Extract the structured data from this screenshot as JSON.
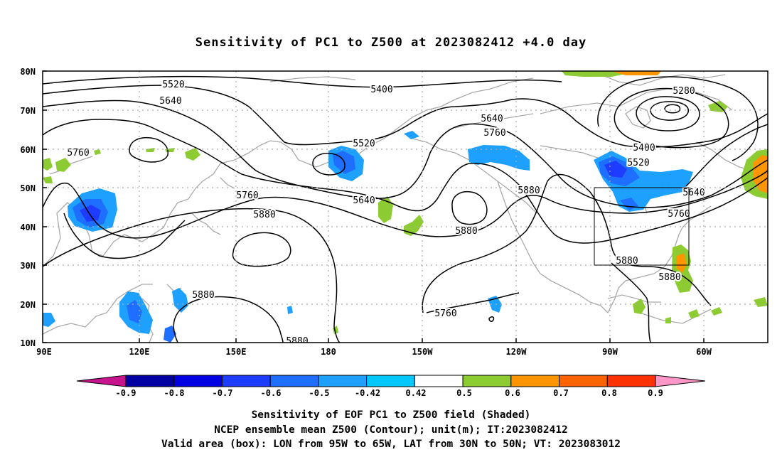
{
  "title": "Sensitivity of PC1 to Z500 at 2023082412 +4.0 day",
  "map": {
    "lat_labels": [
      "80N",
      "70N",
      "60N",
      "50N",
      "40N",
      "30N",
      "20N",
      "10N"
    ],
    "lon_labels": [
      "90E",
      "120E",
      "150E",
      "180",
      "150W",
      "120W",
      "90W",
      "60W"
    ],
    "contour_labels": [
      "5520",
      "5640",
      "5400",
      "5280",
      "5760",
      "5520",
      "5640",
      "5760",
      "5400",
      "5520",
      "5880",
      "5640",
      "5760",
      "5640",
      "5880",
      "5760",
      "5880",
      "5880",
      "5880",
      "5880",
      "5760"
    ],
    "valid_box": {
      "lon_range": [
        "95W",
        "65W"
      ],
      "lat_range": [
        "30N",
        "50N"
      ]
    }
  },
  "colorbar": {
    "labels": [
      "-0.9",
      "-0.8",
      "-0.7",
      "-0.6",
      "-0.5",
      "-0.42",
      "0.42",
      "0.5",
      "0.6",
      "0.7",
      "0.8",
      "0.9"
    ],
    "colors": [
      "#0000a0",
      "#0000e0",
      "#1e3cff",
      "#1e6eff",
      "#1ea0ff",
      "#00c8ff",
      "#ffffff",
      "#8ccc32",
      "#ff9600",
      "#ff6400",
      "#ff3200",
      "#ff0000"
    ],
    "below_color": "#c8148c",
    "above_color": "#ff96c8"
  },
  "captions": {
    "line1": "Sensitivity of EOF PC1 to Z500 field (Shaded)",
    "line2": "NCEP ensemble mean Z500 (Contour); unit(m); IT:2023082412",
    "line3": "Valid area (box): LON from 95W to 65W, LAT from 30N to 50N; VT: 2023083012"
  }
}
